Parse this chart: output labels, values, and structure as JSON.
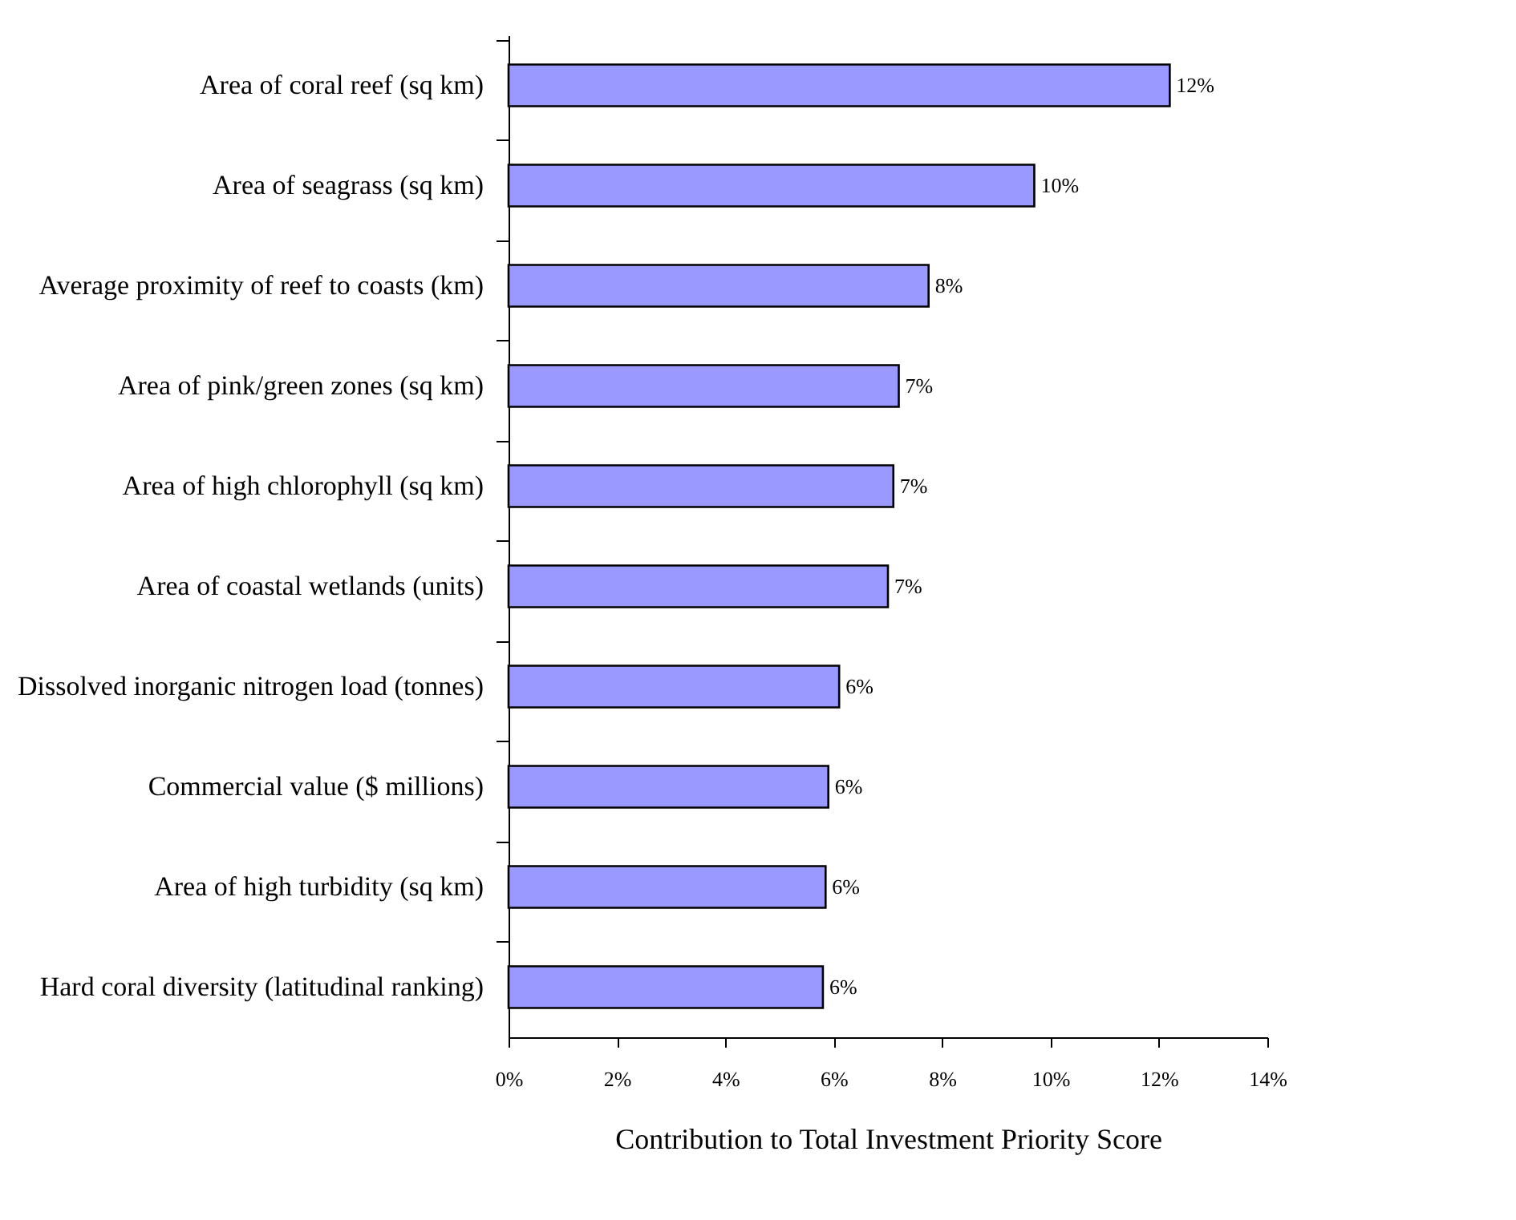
{
  "chart_data": {
    "type": "bar",
    "orientation": "horizontal",
    "xlabel": "Contribution to Total Investment Priority Score",
    "categories": [
      "Area of coral reef (sq km)",
      "Area of seagrass (sq km)",
      "Average proximity of reef to coasts (km)",
      "Area of pink/green zones (sq km)",
      "Area of high chlorophyll (sq km)",
      "Area of coastal wetlands (units)",
      "Dissolved inorganic nitrogen load (tonnes)",
      "Commercial value ($ millions)",
      "Area of high turbidity (sq km)",
      "Hard coral diversity (latitudinal ranking)"
    ],
    "values": [
      12.2,
      9.7,
      7.75,
      7.2,
      7.1,
      7.0,
      6.1,
      5.9,
      5.85,
      5.8
    ],
    "value_labels": [
      "12%",
      "10%",
      "8%",
      "7%",
      "7%",
      "7%",
      "6%",
      "6%",
      "6%",
      "6%"
    ],
    "color": "#9999ff",
    "xlim": [
      0,
      14
    ],
    "xticks": [
      {
        "value": 0,
        "label": "0%"
      },
      {
        "value": 2,
        "label": "2%"
      },
      {
        "value": 4,
        "label": "4%"
      },
      {
        "value": 6,
        "label": "6%"
      },
      {
        "value": 8,
        "label": "8%"
      },
      {
        "value": 10,
        "label": "10%"
      },
      {
        "value": 12,
        "label": "12%"
      },
      {
        "value": 14,
        "label": "14%"
      }
    ],
    "grid": false
  }
}
